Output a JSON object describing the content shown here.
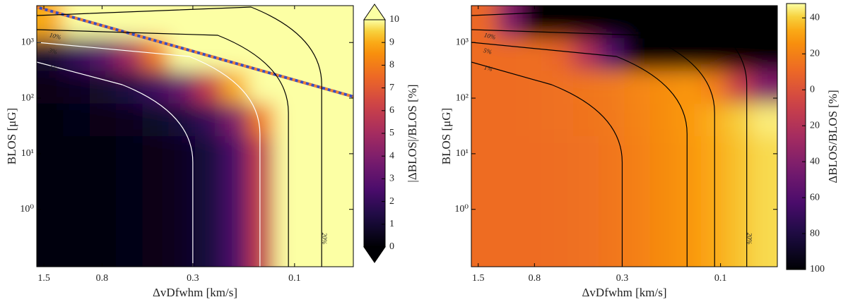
{
  "chart_data": [
    {
      "type": "heatmap",
      "colormap": "inferno",
      "colorbar_extend": "both",
      "x_label": "ΔvDfwhm [km/s]",
      "y_label": "BLOS [μG]",
      "colorbar_label": "|ΔBLOS|/BLOS [%]",
      "xscale": "log",
      "xlim": [
        1.62,
        0.053
      ],
      "xticks": [
        1.5,
        0.8,
        0.3,
        0.1
      ],
      "yscale": "log",
      "ylim": [
        0.093,
        4600
      ],
      "yticks": [
        {
          "value": 1,
          "label": "10⁰"
        },
        {
          "value": 10,
          "label": "10¹"
        },
        {
          "value": 100,
          "label": "10²"
        },
        {
          "value": 1000,
          "label": "10³"
        }
      ],
      "clim": [
        0,
        10
      ],
      "cticks": [
        0,
        1,
        2,
        3,
        4,
        5,
        6,
        7,
        8,
        9,
        10
      ],
      "contour_labels": [
        "1%",
        "3%",
        "10%",
        "20%"
      ],
      "z": [
        [
          9,
          10,
          11,
          12,
          12,
          12,
          12,
          14,
          16,
          20,
          25,
          30
        ],
        [
          1,
          2,
          3,
          5,
          8,
          12,
          14,
          16,
          18,
          20,
          25,
          30
        ],
        [
          0.4,
          0.6,
          0.9,
          1.4,
          2.2,
          3.5,
          6,
          9,
          12,
          15,
          20,
          25
        ],
        [
          0.25,
          0.3,
          0.4,
          0.5,
          0.8,
          1.2,
          2,
          4,
          8,
          12,
          18,
          25
        ],
        [
          0.2,
          0.2,
          0.25,
          0.3,
          0.4,
          0.6,
          1.2,
          2.5,
          6,
          12,
          18,
          25
        ],
        [
          0.2,
          0.2,
          0.25,
          0.3,
          0.4,
          0.6,
          1.2,
          2.5,
          6,
          12,
          18,
          25
        ],
        [
          0.2,
          0.2,
          0.25,
          0.3,
          0.4,
          0.6,
          1.2,
          2.5,
          6,
          12,
          18,
          25
        ],
        [
          0.2,
          0.2,
          0.25,
          0.3,
          0.4,
          0.6,
          1.2,
          2.5,
          6,
          12,
          18,
          25
        ]
      ]
    },
    {
      "type": "heatmap",
      "colormap": "inferno",
      "x_label": "ΔvDfwhm [km/s]",
      "y_label": "BLOS [μG]",
      "colorbar_label": "ΔBLOS/BLOS [%]",
      "xscale": "log",
      "xlim": [
        1.62,
        0.053
      ],
      "xticks": [
        1.5,
        0.8,
        0.3,
        0.1
      ],
      "yscale": "log",
      "ylim": [
        0.093,
        4600
      ],
      "yticks": [
        {
          "value": 1,
          "label": "10⁰"
        },
        {
          "value": 10,
          "label": "10¹"
        },
        {
          "value": 100,
          "label": "10²"
        },
        {
          "value": 1000,
          "label": "10³"
        }
      ],
      "clim": [
        -100,
        48
      ],
      "cticks": [
        40,
        20,
        0,
        {
          "value": -20,
          "label": "20"
        },
        {
          "value": -40,
          "label": "40"
        },
        {
          "value": -60,
          "label": "60"
        },
        {
          "value": -80,
          "label": "80"
        },
        {
          "value": -100,
          "label": "100"
        }
      ],
      "contour_labels": [
        "1%",
        "5%",
        "10%",
        "20%"
      ],
      "z": [
        [
          10,
          -40,
          -100,
          -100,
          -100,
          -100,
          -100,
          -100,
          -100,
          -100,
          -100,
          -100
        ],
        [
          12,
          12,
          13,
          8,
          -20,
          -60,
          -100,
          -100,
          -100,
          -100,
          -100,
          -100
        ],
        [
          12,
          12,
          13,
          14,
          16,
          18,
          22,
          25,
          28,
          20,
          -10,
          -40
        ],
        [
          12,
          12,
          13,
          14,
          15,
          17,
          21,
          25,
          29,
          34,
          40,
          45
        ],
        [
          12,
          12,
          12,
          13,
          14,
          16,
          20,
          24,
          28,
          33,
          38,
          42
        ],
        [
          12,
          12,
          12,
          13,
          14,
          16,
          20,
          24,
          28,
          33,
          38,
          42
        ],
        [
          12,
          12,
          12,
          13,
          14,
          16,
          20,
          24,
          28,
          33,
          38,
          42
        ],
        [
          12,
          12,
          12,
          13,
          14,
          16,
          20,
          24,
          28,
          33,
          38,
          42
        ]
      ]
    }
  ]
}
